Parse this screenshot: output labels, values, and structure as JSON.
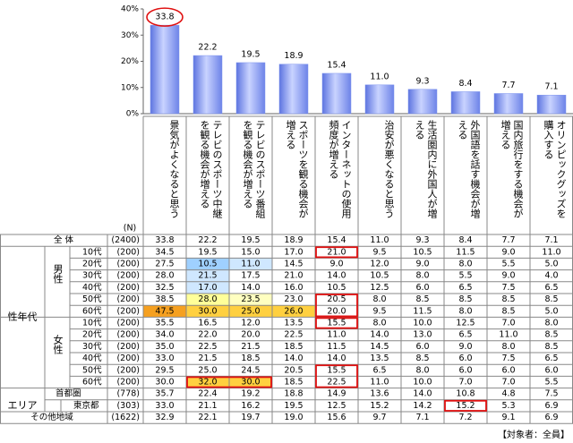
{
  "chart_data": {
    "type": "bar",
    "categories": [
      "景気がよくなると思う",
      "テレビのスポーツ中継を観る機会が増える",
      "テレビのスポーツ番組を観る機会が増える",
      "スポーツを観る機会が増える",
      "インターネットの使用頻度が増える",
      "治安が悪くなると思う",
      "生活圏内に外国人が増える",
      "外国語を話す機会が増える",
      "国内旅行をする機会が増える",
      "オリンピックグッズを購入する"
    ],
    "values": [
      33.8,
      22.2,
      19.5,
      18.9,
      15.4,
      11.0,
      9.3,
      8.4,
      7.7,
      7.1
    ],
    "value_labels": [
      "33.8",
      "22.2",
      "19.5",
      "18.9",
      "15.4",
      "11.0",
      "9.3",
      "8.4",
      "7.7",
      "7.1"
    ],
    "color": "#7f95ee",
    "ylim": [
      0,
      40
    ],
    "yticks": [
      {
        "value": 0,
        "label": "0%"
      },
      {
        "value": 10,
        "label": "10%"
      },
      {
        "value": 20,
        "label": "20%"
      },
      {
        "value": 30,
        "label": "30%"
      },
      {
        "value": 40,
        "label": "40%"
      }
    ]
  },
  "table": {
    "n_header": "(N)",
    "total_label": "全 体",
    "gender_age_label": "性年代",
    "male_label": "男性",
    "female_label": "女性",
    "area_label": "エリア",
    "rows": [
      {
        "label": "全 体",
        "n": "(2400)",
        "values": [
          "33.8",
          "22.2",
          "19.5",
          "18.9",
          "15.4",
          "11.0",
          "9.3",
          "8.4",
          "7.7",
          "7.1"
        ]
      },
      {
        "label": "10代",
        "n": "(200)",
        "values": [
          "34.5",
          "19.5",
          "15.0",
          "17.0",
          "21.0",
          "9.5",
          "10.5",
          "11.5",
          "9.0",
          "11.0"
        ]
      },
      {
        "label": "20代",
        "n": "(200)",
        "values": [
          "27.5",
          "10.5",
          "11.0",
          "14.5",
          "9.0",
          "12.0",
          "9.0",
          "8.0",
          "5.5",
          "5.0"
        ]
      },
      {
        "label": "30代",
        "n": "(200)",
        "values": [
          "28.0",
          "21.5",
          "17.5",
          "21.0",
          "14.0",
          "10.5",
          "8.0",
          "5.5",
          "9.0",
          "4.0"
        ]
      },
      {
        "label": "40代",
        "n": "(200)",
        "values": [
          "32.5",
          "17.0",
          "14.0",
          "16.0",
          "10.5",
          "12.5",
          "6.0",
          "6.5",
          "7.5",
          "6.5"
        ]
      },
      {
        "label": "50代",
        "n": "(200)",
        "values": [
          "38.5",
          "28.0",
          "23.5",
          "23.0",
          "20.5",
          "8.0",
          "8.5",
          "8.5",
          "8.5",
          "8.5"
        ]
      },
      {
        "label": "60代",
        "n": "(200)",
        "values": [
          "47.5",
          "30.0",
          "25.0",
          "26.0",
          "20.0",
          "9.5",
          "11.5",
          "8.0",
          "8.5",
          "5.0"
        ]
      },
      {
        "label": "10代",
        "n": "(200)",
        "values": [
          "35.5",
          "16.5",
          "12.0",
          "13.5",
          "15.5",
          "8.0",
          "10.0",
          "12.5",
          "7.0",
          "8.0"
        ]
      },
      {
        "label": "20代",
        "n": "(200)",
        "values": [
          "34.0",
          "22.0",
          "20.0",
          "22.5",
          "11.0",
          "14.0",
          "13.0",
          "6.5",
          "11.0",
          "8.5"
        ]
      },
      {
        "label": "30代",
        "n": "(200)",
        "values": [
          "35.0",
          "22.5",
          "21.5",
          "18.5",
          "11.5",
          "14.5",
          "6.0",
          "9.0",
          "8.0",
          "8.5"
        ]
      },
      {
        "label": "40代",
        "n": "(200)",
        "values": [
          "33.0",
          "21.5",
          "18.5",
          "14.0",
          "14.0",
          "13.5",
          "8.5",
          "6.0",
          "7.5",
          "6.5"
        ]
      },
      {
        "label": "50代",
        "n": "(200)",
        "values": [
          "29.5",
          "25.0",
          "24.5",
          "20.5",
          "15.5",
          "6.5",
          "8.0",
          "6.0",
          "6.0",
          "6.0"
        ]
      },
      {
        "label": "60代",
        "n": "(200)",
        "values": [
          "30.0",
          "32.0",
          "30.0",
          "18.5",
          "22.5",
          "11.0",
          "10.0",
          "7.0",
          "7.0",
          "5.5"
        ]
      },
      {
        "label": "首都圏",
        "n": "(778)",
        "values": [
          "35.7",
          "22.4",
          "19.2",
          "18.8",
          "14.9",
          "13.6",
          "14.0",
          "10.8",
          "4.8",
          "7.5"
        ]
      },
      {
        "label": "東京都",
        "n": "(303)",
        "values": [
          "33.0",
          "21.1",
          "16.2",
          "19.5",
          "12.5",
          "15.2",
          "14.2",
          "15.2",
          "5.3",
          "6.9"
        ]
      },
      {
        "label": "その他地域",
        "n": "(1622)",
        "values": [
          "32.9",
          "22.1",
          "19.7",
          "19.0",
          "15.6",
          "9.7",
          "7.1",
          "7.2",
          "9.1",
          "6.9"
        ]
      }
    ],
    "footer": "【対象者：全員】"
  }
}
